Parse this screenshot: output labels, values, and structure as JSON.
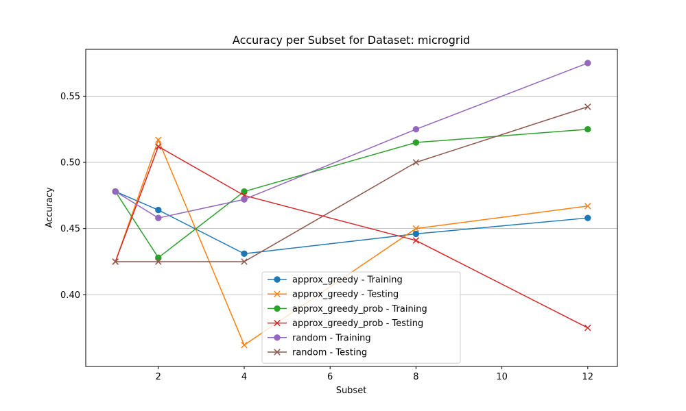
{
  "chart_data": {
    "type": "line",
    "title": "Accuracy per Subset for Dataset: microgrid",
    "xlabel": "Subset",
    "ylabel": "Accuracy",
    "xlim": [
      0.31,
      12.69
    ],
    "ylim": [
      0.3458,
      0.5854
    ],
    "xticks": [
      2,
      4,
      6,
      8,
      10,
      12
    ],
    "yticks": [
      0.4,
      0.45,
      0.5,
      0.55
    ],
    "xtick_labels": [
      "2",
      "4",
      "6",
      "8",
      "10",
      "12"
    ],
    "ytick_labels": [
      "0.40",
      "0.45",
      "0.50",
      "0.55"
    ],
    "grid": "y-major",
    "legend_position": "lower-center",
    "x": [
      1,
      2,
      4,
      8,
      12
    ],
    "series": [
      {
        "name": "approx_greedy - Training",
        "marker": "circle",
        "color": "#1f77b4",
        "values": [
          0.478,
          0.464,
          0.431,
          0.446,
          0.458
        ]
      },
      {
        "name": "approx_greedy - Testing",
        "marker": "x",
        "color": "#ff7f0e",
        "values": [
          0.425,
          0.517,
          0.362,
          0.45,
          0.467
        ]
      },
      {
        "name": "approx_greedy_prob - Training",
        "marker": "circle",
        "color": "#2ca02c",
        "values": [
          0.478,
          0.428,
          0.478,
          0.515,
          0.525
        ]
      },
      {
        "name": "approx_greedy_prob - Testing",
        "marker": "x",
        "color": "#d62728",
        "values": [
          0.425,
          0.512,
          0.475,
          0.441,
          0.375
        ]
      },
      {
        "name": "random - Training",
        "marker": "circle",
        "color": "#9467bd",
        "values": [
          0.478,
          0.458,
          0.472,
          0.525,
          0.575
        ]
      },
      {
        "name": "random - Testing",
        "marker": "x",
        "color": "#8c564b",
        "values": [
          0.425,
          0.425,
          0.425,
          0.5,
          0.542
        ]
      }
    ]
  }
}
